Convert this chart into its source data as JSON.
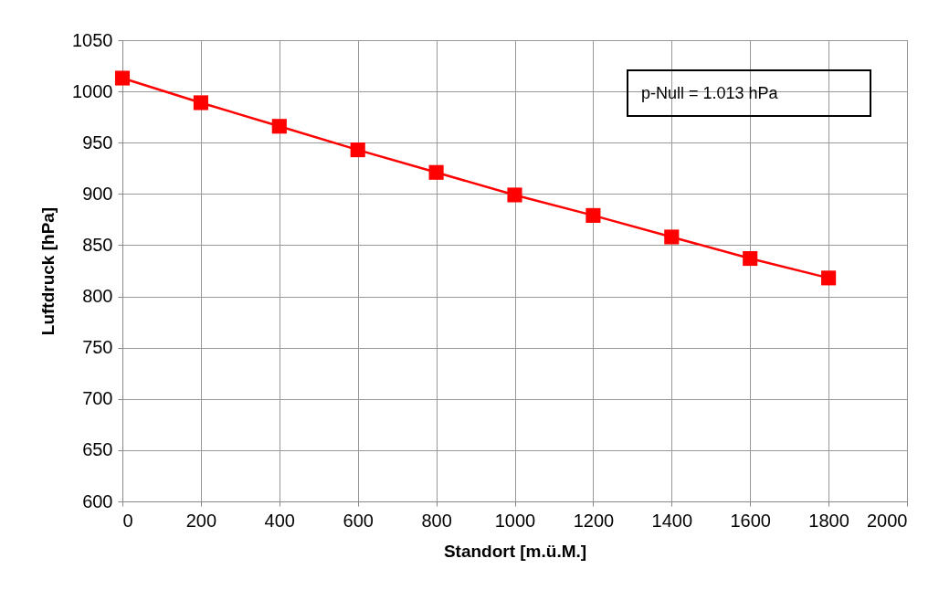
{
  "chart_data": {
    "type": "line",
    "xlabel": "Standort [m.ü.M.]",
    "ylabel": "Luftdruck [hPa]",
    "x": [
      0,
      200,
      400,
      600,
      800,
      1000,
      1200,
      1400,
      1600,
      1800
    ],
    "series": [
      {
        "color": "#ff0000",
        "values": [
          1013,
          989,
          966,
          943,
          921,
          899,
          879,
          858,
          837,
          818
        ]
      }
    ],
    "xlim": [
      0,
      2000
    ],
    "xticks": [
      0,
      200,
      400,
      600,
      800,
      1000,
      1200,
      1400,
      1600,
      1800,
      2000
    ],
    "ylim": [
      600,
      1050
    ],
    "yticks": [
      600,
      650,
      700,
      750,
      800,
      850,
      900,
      950,
      1000,
      1050
    ],
    "grid": true,
    "marker": "square",
    "line_style": "solid",
    "annotations": [
      "p-Null = 1.013 hPa"
    ]
  }
}
